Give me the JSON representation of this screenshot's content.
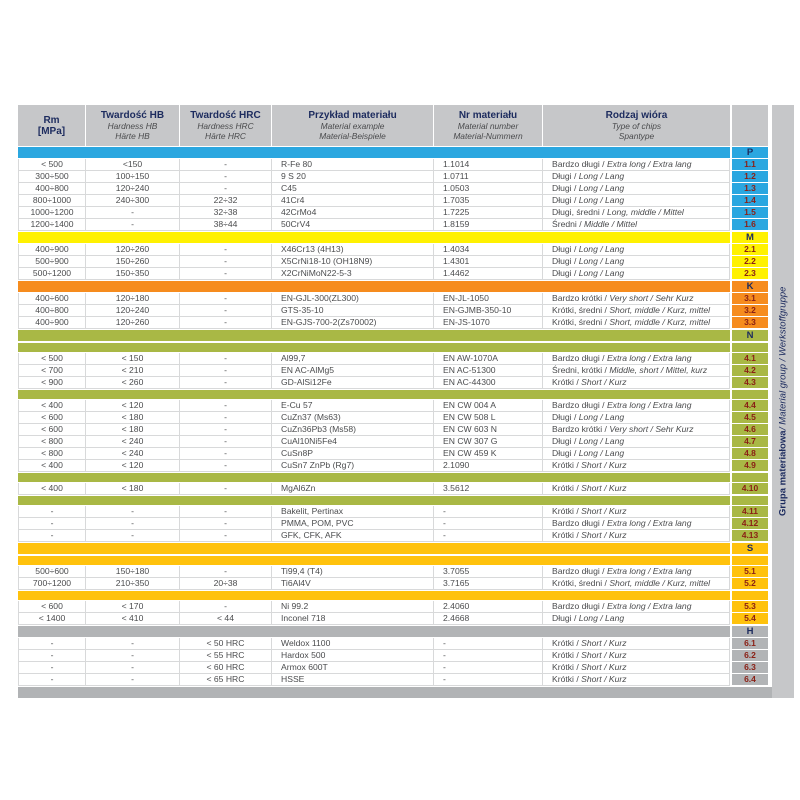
{
  "colors": {
    "header_bg": "#c6c7c9",
    "group_P": "#2ba7e0",
    "group_M": "#fff101",
    "group_K": "#f68c1e",
    "group_N": "#a9b845",
    "group_S": "#ffc20d",
    "group_H": "#b2b4b6",
    "bottom_band": "#b1b3b5",
    "letter_text": "#1c2b5e",
    "code_text": "#8b2015",
    "cell_text": "#4b4c4e"
  },
  "header": {
    "columns": [
      {
        "key": "rm",
        "lines": [
          {
            "t": "Rm",
            "s": "b"
          },
          {
            "t": "[MPa]",
            "s": "b"
          }
        ]
      },
      {
        "key": "hb",
        "lines": [
          {
            "t": "Twardość HB",
            "s": "b"
          },
          {
            "t": "Hardness HB",
            "s": "i"
          },
          {
            "t": "Härte HB",
            "s": "i"
          }
        ]
      },
      {
        "key": "hrc",
        "lines": [
          {
            "t": "Twardość HRC",
            "s": "b"
          },
          {
            "t": "Hardness HRC",
            "s": "i"
          },
          {
            "t": "Härte HRC",
            "s": "i"
          }
        ]
      },
      {
        "key": "example",
        "lines": [
          {
            "t": "Przykład materiału",
            "s": "b"
          },
          {
            "t": "Material example",
            "s": "i"
          },
          {
            "t": "Material-Beispiele",
            "s": "i"
          }
        ]
      },
      {
        "key": "number",
        "lines": [
          {
            "t": "Nr materiału",
            "s": "b"
          },
          {
            "t": "Material number",
            "s": "i"
          },
          {
            "t": "Material-Nummern",
            "s": "i"
          }
        ]
      },
      {
        "key": "chips",
        "lines": [
          {
            "t": "Rodzaj wióra",
            "s": "b"
          },
          {
            "t": "Type of chips",
            "s": "i"
          },
          {
            "t": "Spantype",
            "s": "i"
          }
        ]
      }
    ]
  },
  "sidebar": {
    "bold": "Grupa materiałowa",
    "italic": " / Material group / Werkstoffgruppe"
  },
  "sections": [
    {
      "letter": "P",
      "color": "#2ba7e0",
      "leading_divider": false,
      "blocks": [
        [
          {
            "code": "1.1",
            "rm": "< 500",
            "hb": "<150",
            "hrc": "-",
            "ex": "R-Fe 80",
            "nr": "1.1014",
            "pl": "Bardzo długi",
            "en": "Extra long",
            "de": "Extra lang"
          },
          {
            "code": "1.2",
            "rm": "300÷500",
            "hb": "100÷150",
            "hrc": "-",
            "ex": "9 S 20",
            "nr": "1.0711",
            "pl": "Długi",
            "en": "Long",
            "de": "Lang"
          },
          {
            "code": "1.3",
            "rm": "400÷800",
            "hb": "120÷240",
            "hrc": "-",
            "ex": "C45",
            "nr": "1.0503",
            "pl": "Długi",
            "en": "Long",
            "de": "Lang"
          },
          {
            "code": "1.4",
            "rm": "800÷1000",
            "hb": "240÷300",
            "hrc": "22÷32",
            "ex": "41Cr4",
            "nr": "1.7035",
            "pl": "Długi",
            "en": "Long",
            "de": "Lang"
          },
          {
            "code": "1.5",
            "rm": "1000÷1200",
            "hb": "-",
            "hrc": "32÷38",
            "ex": "42CrMo4",
            "nr": "1.7225",
            "pl": "Długi, średni",
            "en": "Long, middle",
            "de": "Mittel"
          },
          {
            "code": "1.6",
            "rm": "1200÷1400",
            "hb": "-",
            "hrc": "38÷44",
            "ex": "50CrV4",
            "nr": "1.8159",
            "pl": "Średni",
            "en": "Middle",
            "de": "Mittel"
          }
        ]
      ]
    },
    {
      "letter": "M",
      "color": "#fff101",
      "leading_divider": false,
      "blocks": [
        [
          {
            "code": "2.1",
            "rm": "400÷900",
            "hb": "120÷260",
            "hrc": "-",
            "ex": "X46Cr13 (4H13)",
            "nr": "1.4034",
            "pl": "Długi",
            "en": "Long",
            "de": "Lang"
          },
          {
            "code": "2.2",
            "rm": "500÷900",
            "hb": "150÷260",
            "hrc": "-",
            "ex": "X5CrNi18-10 (OH18N9)",
            "nr": "1.4301",
            "pl": "Długi",
            "en": "Long",
            "de": "Lang"
          },
          {
            "code": "2.3",
            "rm": "500÷1200",
            "hb": "150÷350",
            "hrc": "-",
            "ex": "X2CrNiMoN22-5-3",
            "nr": "1.4462",
            "pl": "Długi",
            "en": "Long",
            "de": "Lang"
          }
        ]
      ]
    },
    {
      "letter": "K",
      "color": "#f68c1e",
      "leading_divider": false,
      "blocks": [
        [
          {
            "code": "3.1",
            "rm": "400÷600",
            "hb": "120÷180",
            "hrc": "-",
            "ex": "EN-GJL-300(ZL300)",
            "nr": "EN-JL-1050",
            "pl": "Bardzo krótki",
            "en": "Very short",
            "de": "Sehr Kurz"
          },
          {
            "code": "3.2",
            "rm": "400÷800",
            "hb": "120÷240",
            "hrc": "-",
            "ex": "GTS-35-10",
            "nr": "EN-GJMB-350-10",
            "pl": "Krótki, średni",
            "en": "Short, middle",
            "de": "Kurz, mittel"
          },
          {
            "code": "3.3",
            "rm": "400÷900",
            "hb": "120÷260",
            "hrc": "-",
            "ex": "EN-GJS-700-2(Zs70002)",
            "nr": "EN-JS-1070",
            "pl": "Krótki, średni",
            "en": "Short, middle",
            "de": "Kurz, mittel"
          }
        ]
      ]
    },
    {
      "letter": "N",
      "color": "#a9b845",
      "leading_divider": true,
      "blocks": [
        [
          {
            "code": "4.1",
            "rm": "< 500",
            "hb": "< 150",
            "hrc": "-",
            "ex": "Al99,7",
            "nr": "EN AW-1070A",
            "pl": "Bardzo długi",
            "en": "Extra long",
            "de": "Extra lang"
          },
          {
            "code": "4.2",
            "rm": "< 700",
            "hb": "< 210",
            "hrc": "-",
            "ex": "EN AC-AlMg5",
            "nr": "EN AC-51300",
            "pl": "Średni, krótki",
            "en": "Middle, short",
            "de": "Mittel, kurz"
          },
          {
            "code": "4.3",
            "rm": "< 900",
            "hb": "< 260",
            "hrc": "-",
            "ex": "GD-AlSi12Fe",
            "nr": "EN AC-44300",
            "pl": "Krótki",
            "en": "Short",
            "de": "Kurz"
          }
        ],
        [
          {
            "code": "4.4",
            "rm": "< 400",
            "hb": "< 120",
            "hrc": "-",
            "ex": "E-Cu 57",
            "nr": "EN CW 004 A",
            "pl": "Bardzo długi",
            "en": "Extra long",
            "de": "Extra lang"
          },
          {
            "code": "4.5",
            "rm": "< 600",
            "hb": "< 180",
            "hrc": "-",
            "ex": "CuZn37 (Ms63)",
            "nr": "EN CW 508 L",
            "pl": "Długi",
            "en": "Long",
            "de": "Lang"
          },
          {
            "code": "4.6",
            "rm": "< 600",
            "hb": "< 180",
            "hrc": "-",
            "ex": "CuZn36Pb3 (Ms58)",
            "nr": "EN CW 603 N",
            "pl": "Bardzo krótki",
            "en": "Very short",
            "de": "Sehr Kurz"
          },
          {
            "code": "4.7",
            "rm": "< 800",
            "hb": "< 240",
            "hrc": "-",
            "ex": "CuAl10Ni5Fe4",
            "nr": "EN CW 307 G",
            "pl": "Długi",
            "en": "Long",
            "de": "Lang"
          },
          {
            "code": "4.8",
            "rm": "< 800",
            "hb": "< 240",
            "hrc": "-",
            "ex": "CuSn8P",
            "nr": "EN CW 459 K",
            "pl": "Długi",
            "en": "Long",
            "de": "Lang"
          },
          {
            "code": "4.9",
            "rm": "< 400",
            "hb": "< 120",
            "hrc": "-",
            "ex": "CuSn7 ZnPb (Rg7)",
            "nr": "2.1090",
            "pl": "Krótki",
            "en": "Short",
            "de": "Kurz"
          }
        ],
        [
          {
            "code": "4.10",
            "rm": "< 400",
            "hb": "< 180",
            "hrc": "-",
            "ex": "MgAl6Zn",
            "nr": "3.5612",
            "pl": "Krótki",
            "en": "Short",
            "de": "Kurz"
          }
        ],
        [
          {
            "code": "4.11",
            "rm": "-",
            "hb": "-",
            "hrc": "-",
            "ex": "Bakelit, Pertinax",
            "nr": "-",
            "pl": "Krótki",
            "en": "Short",
            "de": "Kurz"
          },
          {
            "code": "4.12",
            "rm": "-",
            "hb": "-",
            "hrc": "-",
            "ex": "PMMA, POM, PVC",
            "nr": "-",
            "pl": "Bardzo długi",
            "en": "Extra long",
            "de": "Extra lang"
          },
          {
            "code": "4.13",
            "rm": "-",
            "hb": "-",
            "hrc": "-",
            "ex": "GFK, CFK, AFK",
            "nr": "-",
            "pl": "Krótki",
            "en": "Short",
            "de": "Kurz"
          }
        ]
      ]
    },
    {
      "letter": "S",
      "color": "#ffc20d",
      "leading_divider": true,
      "blocks": [
        [
          {
            "code": "5.1",
            "rm": "500÷600",
            "hb": "150÷180",
            "hrc": "-",
            "ex": "Ti99,4 (T4)",
            "nr": "3.7055",
            "pl": "Bardzo długi",
            "en": "Extra long",
            "de": "Extra lang"
          },
          {
            "code": "5.2",
            "rm": "700÷1200",
            "hb": "210÷350",
            "hrc": "20÷38",
            "ex": "Ti6Al4V",
            "nr": "3.7165",
            "pl": "Krótki, średni",
            "en": "Short, middle",
            "de": "Kurz, mittel"
          }
        ],
        [
          {
            "code": "5.3",
            "rm": "< 600",
            "hb": "< 170",
            "hrc": "-",
            "ex": "Ni 99.2",
            "nr": "2.4060",
            "pl": "Bardzo długi",
            "en": "Extra long",
            "de": "Extra lang"
          },
          {
            "code": "5.4",
            "rm": "< 1400",
            "hb": "< 410",
            "hrc": "< 44",
            "ex": "Inconel 718",
            "nr": "2.4668",
            "pl": "Długi",
            "en": "Long",
            "de": "Lang"
          }
        ]
      ]
    },
    {
      "letter": "H",
      "color": "#b2b4b6",
      "leading_divider": false,
      "blocks": [
        [
          {
            "code": "6.1",
            "rm": "-",
            "hb": "-",
            "hrc": "< 50 HRC",
            "ex": "Weldox 1100",
            "nr": "-",
            "pl": "Krótki",
            "en": "Short",
            "de": "Kurz"
          },
          {
            "code": "6.2",
            "rm": "-",
            "hb": "-",
            "hrc": "< 55 HRC",
            "ex": "Hardox 500",
            "nr": "-",
            "pl": "Krótki",
            "en": "Short",
            "de": "Kurz"
          },
          {
            "code": "6.3",
            "rm": "-",
            "hb": "-",
            "hrc": "< 60 HRC",
            "ex": "Armox 600T",
            "nr": "-",
            "pl": "Krótki",
            "en": "Short",
            "de": "Kurz"
          },
          {
            "code": "6.4",
            "rm": "-",
            "hb": "-",
            "hrc": "< 65 HRC",
            "ex": "HSSE",
            "nr": "-",
            "pl": "Krótki",
            "en": "Short",
            "de": "Kurz"
          }
        ]
      ]
    }
  ]
}
